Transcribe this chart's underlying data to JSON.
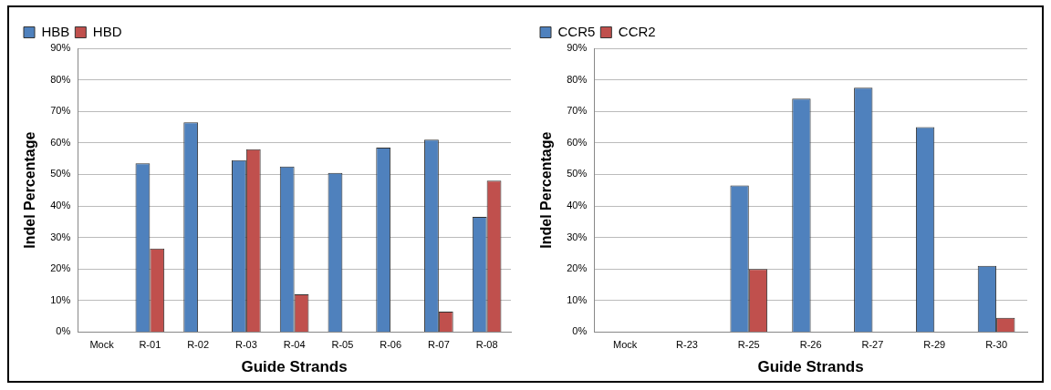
{
  "chart_data": [
    {
      "type": "bar",
      "xlabel": "Guide Strands",
      "ylabel": "Indel Percentage",
      "categories": [
        "Mock",
        "R-01",
        "R-02",
        "R-03",
        "R-04",
        "R-05",
        "R-06",
        "R-07",
        "R-08"
      ],
      "series": [
        {
          "name": "HBB",
          "color": "#4f81bd",
          "values": [
            0,
            53.5,
            66.5,
            54.5,
            52.5,
            50.5,
            58.5,
            61,
            36.5
          ]
        },
        {
          "name": "HBD",
          "color": "#c0504d",
          "values": [
            0,
            26.5,
            0,
            58,
            12,
            0,
            0,
            6.5,
            48
          ]
        }
      ],
      "ylim": [
        0,
        90
      ],
      "yticks": [
        {
          "value": 0,
          "label": "0%"
        },
        {
          "value": 10,
          "label": "10%"
        },
        {
          "value": 20,
          "label": "20%"
        },
        {
          "value": 30,
          "label": "30%"
        },
        {
          "value": 40,
          "label": "40%"
        },
        {
          "value": 50,
          "label": "50%"
        },
        {
          "value": 60,
          "label": "60%"
        },
        {
          "value": 70,
          "label": "70%"
        },
        {
          "value": 80,
          "label": "80%"
        },
        {
          "value": 90,
          "label": "90%"
        }
      ],
      "grid": "y",
      "legend": "top left"
    },
    {
      "type": "bar",
      "xlabel": "Guide Strands",
      "ylabel": "Indel Percentage",
      "categories": [
        "Mock",
        "R-23",
        "R-25",
        "R-26",
        "R-27",
        "R-29",
        "R-30"
      ],
      "series": [
        {
          "name": "CCR5",
          "color": "#4f81bd",
          "values": [
            0,
            0,
            46.5,
            74,
            77.5,
            65,
            21
          ]
        },
        {
          "name": "CCR2",
          "color": "#c0504d",
          "values": [
            0,
            0,
            20,
            0,
            0,
            0,
            4.5
          ]
        }
      ],
      "ylim": [
        0,
        90
      ],
      "yticks": [
        {
          "value": 0,
          "label": "0%"
        },
        {
          "value": 10,
          "label": "10%"
        },
        {
          "value": 20,
          "label": "20%"
        },
        {
          "value": 30,
          "label": "30%"
        },
        {
          "value": 40,
          "label": "40%"
        },
        {
          "value": 50,
          "label": "50%"
        },
        {
          "value": 60,
          "label": "60%"
        },
        {
          "value": 70,
          "label": "70%"
        },
        {
          "value": 80,
          "label": "80%"
        },
        {
          "value": 90,
          "label": "90%"
        }
      ],
      "grid": "y",
      "legend": "top left"
    }
  ]
}
